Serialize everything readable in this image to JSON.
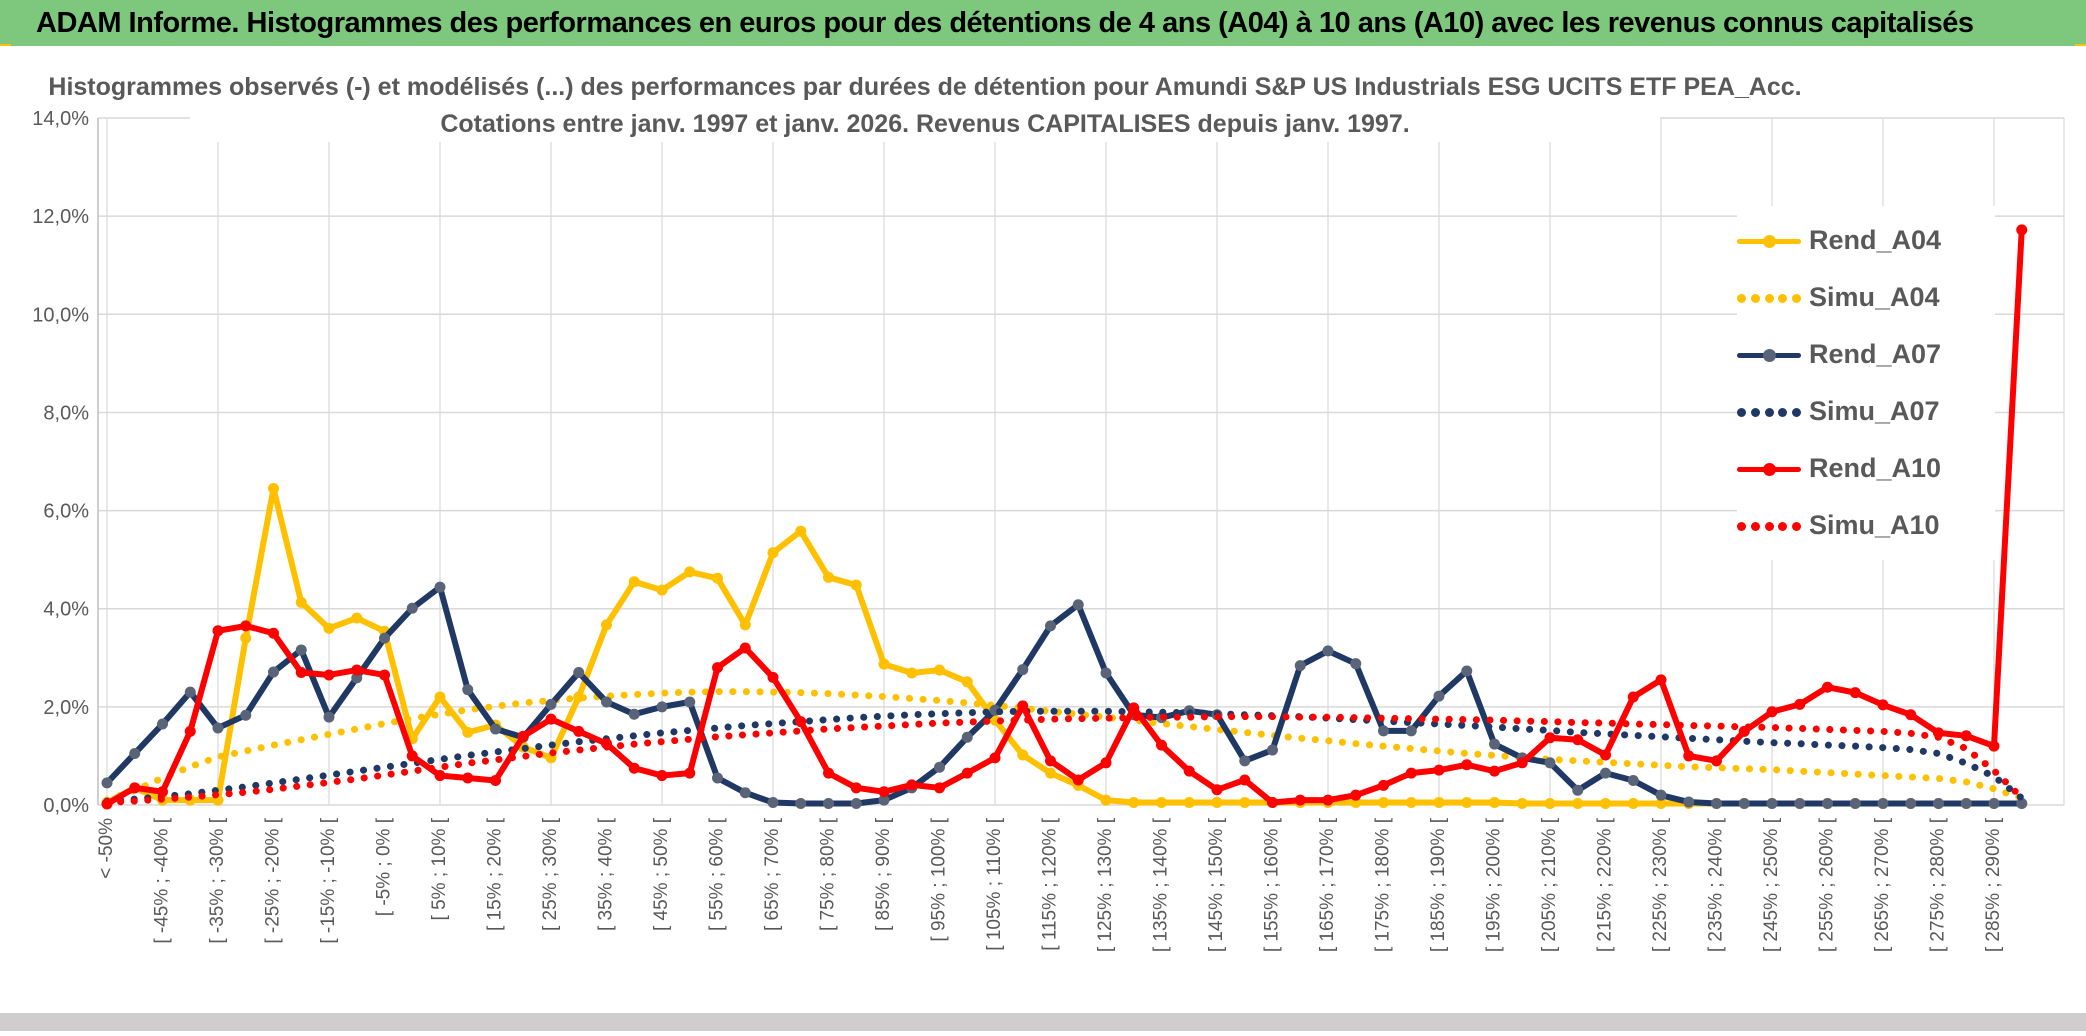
{
  "header": {
    "title": "ADAM Informe. Histogrammes des performances en euros pour des détentions de 4 ans (A04) à 10 ans (A10) avec les revenus connus capitalisés",
    "bar_color": "#7EC87E",
    "accent_color": "#FFC000"
  },
  "chart_data": {
    "type": "line",
    "title": "Histogrammes observés (-) et modélisés (...) des performances par durées de détention pour Amundi S&P US Industrials ESG UCITS ETF PEA_Acc.",
    "subtitle": "Cotations entre janv. 1997 et janv. 2026. Revenus CAPITALISES depuis janv. 1997.",
    "ylabel": "",
    "xlabel": "",
    "ylim": [
      0,
      14
    ],
    "y_tick_step": 2,
    "y_tick_labels": [
      "0,0%",
      "2,0%",
      "4,0%",
      "6,0%",
      "8,0%",
      "10,0%",
      "12,0%",
      "14,0%"
    ],
    "grid": true,
    "x_label_every_n_points": 2,
    "x_gridline_every_n_points": 4,
    "legend_position": "right-inside",
    "x_labels": [
      "< -50%",
      "[ -45% ; -40% [",
      "[ -35% ; -30% [",
      "[ -25% ; -20% [",
      "[ -15% ; -10% [",
      "[ -5% ; 0% [",
      "[ 5% ; 10% [",
      "[ 15% ; 20% [",
      "[ 25% ; 30% [",
      "[ 35% ; 40% [",
      "[ 45% ; 50% [",
      "[ 55% ; 60% [",
      "[ 65% ; 70% [",
      "[ 75% ; 80% [",
      "[ 85% ; 90% [",
      "[ 95% ; 100% [",
      "[ 105% ; 110% [",
      "[ 115% ; 120% [",
      "[ 125% ; 130% [",
      "[ 135% ; 140% [",
      "[ 145% ; 150% [",
      "[ 155% ; 160% [",
      "[ 165% ; 170% [",
      "[ 175% ; 180% [",
      "[ 185% ; 190% [",
      "[ 195% ; 200% [",
      "[ 205% ; 210% [",
      "[ 215% ; 220% [",
      "[ 225% ; 230% [",
      "[ 235% ; 240% [",
      "[ 245% ; 250% [",
      "[ 255% ; 260% [",
      "[ 265% ; 270% [",
      "[ 275% ; 280% [",
      "[ 285% ; 290% ["
    ],
    "series": [
      {
        "name": "Rend_A04",
        "style": "solid",
        "color": "#FFC000",
        "marker_color": "#FFC000",
        "values": [
          0.05,
          0.35,
          0.1,
          0.1,
          0.1,
          3.4,
          6.45,
          4.13,
          3.6,
          3.81,
          3.54,
          1.35,
          2.2,
          1.48,
          1.63,
          1.18,
          0.96,
          2.2,
          3.67,
          4.55,
          4.38,
          4.75,
          4.62,
          3.67,
          5.14,
          5.58,
          4.64,
          4.48,
          2.87,
          2.69,
          2.75,
          2.51,
          1.73,
          1.02,
          0.65,
          0.4,
          0.1,
          0.05,
          0.05,
          0.05,
          0.05,
          0.05,
          0.05,
          0.05,
          0.05,
          0.05,
          0.05,
          0.05,
          0.05,
          0.05,
          0.05,
          0.03,
          0.03,
          0.03,
          0.03,
          0.03,
          0.03,
          0.03,
          0.03,
          0.03,
          0.03,
          0.03,
          0.03,
          0.03,
          0.03,
          0.03,
          0.03,
          0.03,
          0.03,
          0.03
        ]
      },
      {
        "name": "Simu_A04",
        "style": "dotted",
        "color": "#FFC000",
        "values": [
          0.1,
          0.3,
          0.55,
          0.78,
          0.98,
          1.1,
          1.22,
          1.33,
          1.44,
          1.55,
          1.66,
          1.76,
          1.85,
          1.94,
          2.01,
          2.08,
          2.13,
          2.18,
          2.22,
          2.25,
          2.28,
          2.3,
          2.31,
          2.31,
          2.3,
          2.29,
          2.27,
          2.24,
          2.21,
          2.17,
          2.13,
          2.08,
          2.03,
          1.97,
          1.91,
          1.85,
          1.79,
          1.73,
          1.66,
          1.6,
          1.54,
          1.48,
          1.42,
          1.36,
          1.31,
          1.25,
          1.2,
          1.15,
          1.1,
          1.05,
          1.01,
          0.97,
          0.93,
          0.9,
          0.87,
          0.84,
          0.81,
          0.78,
          0.76,
          0.74,
          0.72,
          0.69,
          0.66,
          0.63,
          0.6,
          0.57,
          0.54,
          0.47,
          0.33,
          0.14
        ]
      },
      {
        "name": "Rend_A07",
        "style": "solid",
        "color": "#1F3864",
        "marker_color": "#5A6478",
        "values": [
          0.45,
          1.05,
          1.65,
          2.3,
          1.57,
          1.83,
          2.71,
          3.16,
          1.79,
          2.59,
          3.4,
          4.01,
          4.44,
          2.35,
          1.55,
          1.38,
          2.05,
          2.7,
          2.1,
          1.85,
          2.0,
          2.1,
          0.55,
          0.25,
          0.05,
          0.03,
          0.03,
          0.03,
          0.1,
          0.35,
          0.77,
          1.38,
          1.93,
          2.76,
          3.65,
          4.08,
          2.69,
          1.84,
          1.78,
          1.92,
          1.84,
          0.9,
          1.12,
          2.84,
          3.14,
          2.88,
          1.51,
          1.51,
          2.22,
          2.73,
          1.24,
          0.96,
          0.86,
          0.3,
          0.65,
          0.5,
          0.2,
          0.06,
          0.03,
          0.03,
          0.03,
          0.03,
          0.03,
          0.03,
          0.03,
          0.03,
          0.03,
          0.03,
          0.03,
          0.03
        ]
      },
      {
        "name": "Simu_A07",
        "style": "dotted",
        "color": "#1F3864",
        "values": [
          0.08,
          0.12,
          0.17,
          0.23,
          0.3,
          0.37,
          0.45,
          0.53,
          0.61,
          0.69,
          0.77,
          0.85,
          0.93,
          1.01,
          1.08,
          1.15,
          1.22,
          1.29,
          1.35,
          1.41,
          1.47,
          1.52,
          1.57,
          1.62,
          1.66,
          1.7,
          1.74,
          1.78,
          1.81,
          1.84,
          1.86,
          1.88,
          1.9,
          1.91,
          1.91,
          1.91,
          1.91,
          1.9,
          1.89,
          1.88,
          1.86,
          1.84,
          1.82,
          1.8,
          1.77,
          1.74,
          1.71,
          1.68,
          1.65,
          1.62,
          1.59,
          1.55,
          1.52,
          1.48,
          1.45,
          1.42,
          1.39,
          1.36,
          1.33,
          1.3,
          1.27,
          1.25,
          1.22,
          1.2,
          1.17,
          1.13,
          1.05,
          0.85,
          0.58,
          0.14
        ]
      },
      {
        "name": "Rend_A10",
        "style": "solid",
        "color": "#FF0000",
        "marker_color": "#FF0000",
        "values": [
          0.02,
          0.35,
          0.27,
          1.5,
          3.55,
          3.65,
          3.5,
          2.7,
          2.65,
          2.75,
          2.65,
          1.0,
          0.6,
          0.55,
          0.5,
          1.4,
          1.75,
          1.5,
          1.25,
          0.75,
          0.6,
          0.65,
          2.8,
          3.2,
          2.6,
          1.7,
          0.65,
          0.35,
          0.27,
          0.41,
          0.35,
          0.65,
          0.96,
          2.02,
          0.9,
          0.51,
          0.86,
          1.98,
          1.22,
          0.69,
          0.31,
          0.51,
          0.05,
          0.1,
          0.1,
          0.2,
          0.4,
          0.65,
          0.71,
          0.82,
          0.69,
          0.86,
          1.37,
          1.33,
          1.02,
          2.2,
          2.55,
          1.0,
          0.9,
          1.5,
          1.9,
          2.05,
          2.4,
          2.29,
          2.04,
          1.84,
          1.47,
          1.41,
          1.2,
          11.72
        ]
      },
      {
        "name": "Simu_A10",
        "style": "dotted",
        "color": "#FF0000",
        "values": [
          0.05,
          0.08,
          0.12,
          0.16,
          0.21,
          0.26,
          0.32,
          0.39,
          0.46,
          0.53,
          0.61,
          0.69,
          0.77,
          0.85,
          0.92,
          0.99,
          1.06,
          1.12,
          1.18,
          1.24,
          1.29,
          1.34,
          1.39,
          1.43,
          1.47,
          1.51,
          1.55,
          1.58,
          1.61,
          1.64,
          1.67,
          1.69,
          1.71,
          1.73,
          1.75,
          1.76,
          1.77,
          1.78,
          1.79,
          1.79,
          1.8,
          1.8,
          1.8,
          1.79,
          1.79,
          1.78,
          1.77,
          1.76,
          1.75,
          1.74,
          1.73,
          1.71,
          1.7,
          1.68,
          1.67,
          1.65,
          1.64,
          1.62,
          1.61,
          1.59,
          1.58,
          1.56,
          1.54,
          1.52,
          1.5,
          1.46,
          1.38,
          1.15,
          0.7,
          0.15
        ]
      }
    ]
  },
  "legend": {
    "items": [
      {
        "label": "Rend_A04"
      },
      {
        "label": "Simu_A04"
      },
      {
        "label": "Rend_A07"
      },
      {
        "label": "Simu_A07"
      },
      {
        "label": "Rend_A10"
      },
      {
        "label": "Simu_A10"
      }
    ]
  },
  "colors": {
    "grid": "#D9D9D9",
    "axis": "#BFBFBF",
    "tick_text": "#595959",
    "title_text": "#595959",
    "bottom_strip": "#CFCDCD"
  }
}
